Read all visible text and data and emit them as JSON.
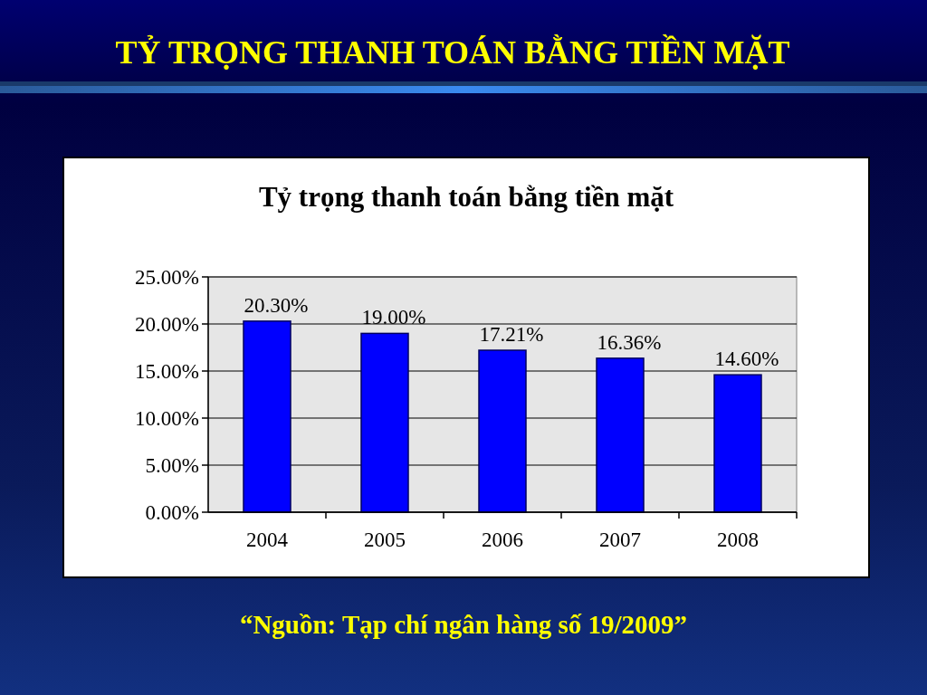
{
  "chart_data": {
    "type": "bar",
    "title": "TỶ TRỌNG THANH TOÁN BẰNG TIỀN MẶT",
    "subtitle": "Tỷ trọng thanh toán bằng tiền mặt",
    "categories": [
      "2004",
      "2005",
      "2006",
      "2007",
      "2008"
    ],
    "values": [
      20.3,
      19.0,
      17.21,
      16.36,
      14.6
    ],
    "color": "#0000ff",
    "value_labels": [
      "20.30%",
      "19.00%",
      "17.21%",
      "16.36%",
      "14.60%"
    ],
    "ylim": [
      0,
      25
    ],
    "yticks": [
      {
        "value": 0,
        "label": "0.00%"
      },
      {
        "value": 5,
        "label": "5.00%"
      },
      {
        "value": 10,
        "label": "10.00%"
      },
      {
        "value": 15,
        "label": "15.00%"
      },
      {
        "value": 20,
        "label": "20.00%"
      },
      {
        "value": 25,
        "label": "25.00%"
      }
    ],
    "grid": "y",
    "annotations": [
      "“Nguồn: Tạp chí ngân hàng số 19/2009”"
    ]
  }
}
